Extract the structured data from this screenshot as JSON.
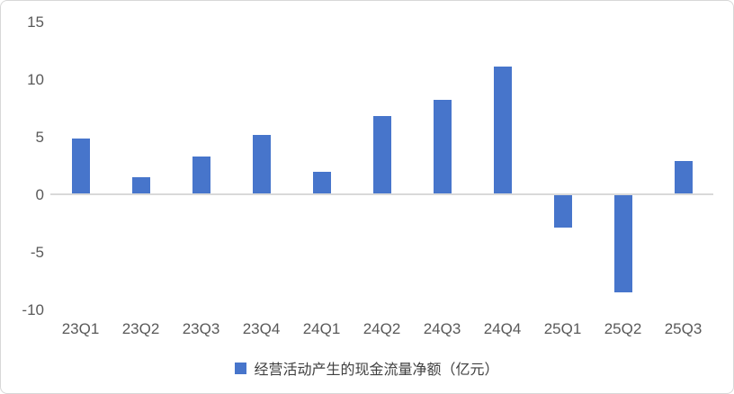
{
  "chart_data": {
    "type": "bar",
    "title": "",
    "categories": [
      "23Q1",
      "23Q2",
      "23Q3",
      "23Q4",
      "24Q1",
      "24Q2",
      "24Q3",
      "24Q4",
      "25Q1",
      "25Q2",
      "25Q3"
    ],
    "values": [
      4.8,
      1.4,
      3.2,
      5.1,
      1.9,
      6.7,
      8.1,
      11.0,
      -2.8,
      -8.4,
      2.8
    ],
    "series_name": "经营活动产生的现金流量净额（亿元）",
    "legend": "经营活动产生的现金流量净额（亿元）",
    "legend_position": "bottom",
    "xlabel": "",
    "ylabel": "",
    "ylim": [
      -10,
      15
    ],
    "yticks": [
      15,
      10,
      5,
      0,
      -5,
      -10
    ],
    "grid": false,
    "bar_color": "#4775CB",
    "axis_line_color": "#d9d9d9",
    "tick_label_color": "#595959"
  }
}
